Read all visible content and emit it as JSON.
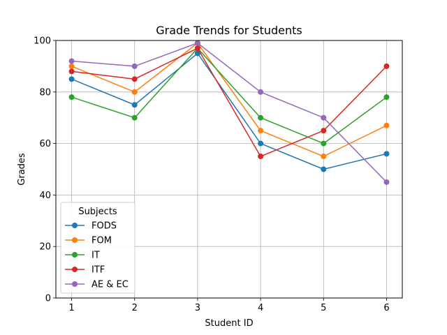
{
  "chart_data": {
    "type": "line",
    "title": "Grade Trends for Students",
    "xlabel": "Student ID",
    "ylabel": "Grades",
    "x": [
      1,
      2,
      3,
      4,
      5,
      6
    ],
    "xticks": [
      "1",
      "2",
      "3",
      "4",
      "5",
      "6"
    ],
    "yticks": [
      "0",
      "20",
      "40",
      "60",
      "80",
      "100"
    ],
    "xlim": [
      0.75,
      6.25
    ],
    "ylim": [
      0,
      100
    ],
    "grid": true,
    "legend": {
      "title": "Subjects",
      "placement": "lower-left"
    },
    "series": [
      {
        "name": "FODS",
        "color": "#1f77b4",
        "values": [
          85,
          75,
          95,
          60,
          50,
          56
        ]
      },
      {
        "name": "FOM",
        "color": "#ff7f0e",
        "values": [
          90,
          80,
          99,
          65,
          55,
          67
        ]
      },
      {
        "name": "IT",
        "color": "#2ca02c",
        "values": [
          78,
          70,
          97,
          70,
          60,
          78
        ]
      },
      {
        "name": "ITF",
        "color": "#d62728",
        "values": [
          88,
          85,
          97,
          55,
          65,
          90
        ]
      },
      {
        "name": "AE & EC",
        "color": "#9467bd",
        "values": [
          92,
          90,
          99,
          80,
          70,
          45
        ]
      }
    ]
  }
}
